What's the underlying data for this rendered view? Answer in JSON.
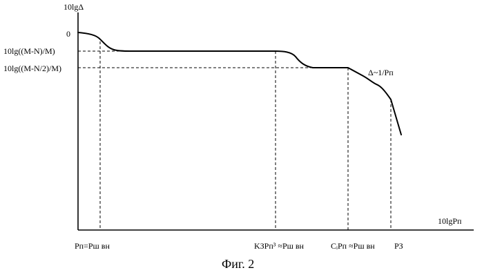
{
  "figure": {
    "caption": "Фиг. 2",
    "y_axis_label": "10lgΔ",
    "x_axis_label": "10lgPп",
    "y_ticks": [
      "0",
      "10lg((M-N)/M)",
      "10lg((M-N/2)/M)"
    ],
    "x_ticks": [
      "Pп=Pш вн",
      "KЗPп³ ≈Pш вн",
      "CᵢPп ≈Pш вн",
      "PЗ"
    ],
    "annotation": "Δ~1/Pп"
  }
}
